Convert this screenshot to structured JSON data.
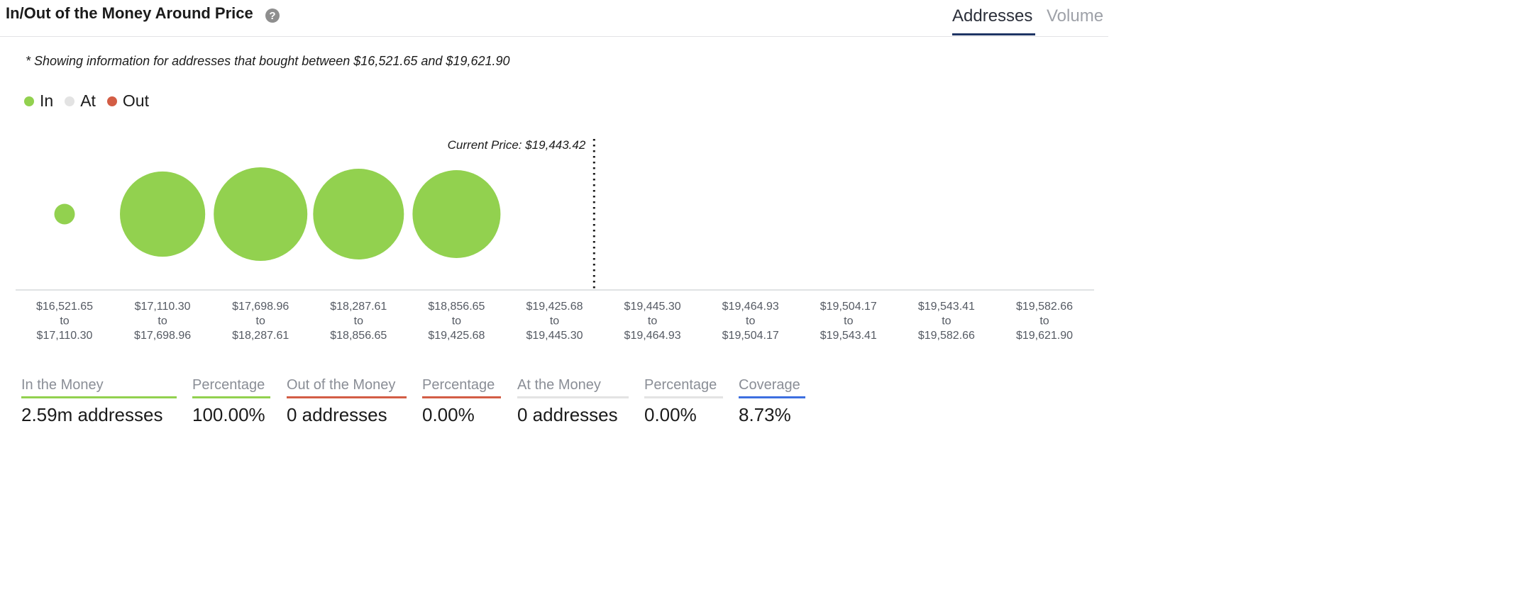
{
  "header": {
    "title": "In/Out of the Money Around Price",
    "help_glyph": "?",
    "tabs": [
      {
        "label": "Addresses",
        "active": true
      },
      {
        "label": "Volume",
        "active": false
      }
    ]
  },
  "note": "* Showing information for addresses that bought between $16,521.65 and $19,621.90",
  "legend": [
    {
      "label": "In",
      "color": "#92d14f"
    },
    {
      "label": "At",
      "color": "#e3e3e3"
    },
    {
      "label": "Out",
      "color": "#d35d45"
    }
  ],
  "chart_data": {
    "type": "scatter",
    "current_price_label": "Current Price: $19,443.42",
    "current_price": 19443.42,
    "range_joiner": "to",
    "bins": [
      {
        "from": "$16,521.65",
        "to": "$17,110.30",
        "status": "in",
        "relative_size": 0.22
      },
      {
        "from": "$17,110.30",
        "to": "$17,698.96",
        "status": "in",
        "relative_size": 0.91
      },
      {
        "from": "$17,698.96",
        "to": "$18,287.61",
        "status": "in",
        "relative_size": 1.0
      },
      {
        "from": "$18,287.61",
        "to": "$18,856.65",
        "status": "in",
        "relative_size": 0.97
      },
      {
        "from": "$18,856.65",
        "to": "$19,425.68",
        "status": "in",
        "relative_size": 0.94
      },
      {
        "from": "$19,425.68",
        "to": "$19,445.30",
        "status": "in",
        "relative_size": 0
      },
      {
        "from": "$19,445.30",
        "to": "$19,464.93",
        "status": "out",
        "relative_size": 0
      },
      {
        "from": "$19,464.93",
        "to": "$19,504.17",
        "status": "out",
        "relative_size": 0
      },
      {
        "from": "$19,504.17",
        "to": "$19,543.41",
        "status": "out",
        "relative_size": 0
      },
      {
        "from": "$19,543.41",
        "to": "$19,582.66",
        "status": "out",
        "relative_size": 0
      },
      {
        "from": "$19,582.66",
        "to": "$19,621.90",
        "status": "out",
        "relative_size": 0
      }
    ]
  },
  "stats": [
    {
      "label": "In the Money",
      "value": "2.59m addresses",
      "color": "#92d14f"
    },
    {
      "label": "Percentage",
      "value": "100.00%",
      "color": "#92d14f"
    },
    {
      "label": "Out of the Money",
      "value": "0 addresses",
      "color": "#d35d45"
    },
    {
      "label": "Percentage",
      "value": "0.00%",
      "color": "#d35d45"
    },
    {
      "label": "At the Money",
      "value": "0 addresses",
      "color": "#e3e3e3"
    },
    {
      "label": "Percentage",
      "value": "0.00%",
      "color": "#e3e3e3"
    },
    {
      "label": "Coverage",
      "value": "8.73%",
      "color": "#3d6fe0"
    }
  ]
}
